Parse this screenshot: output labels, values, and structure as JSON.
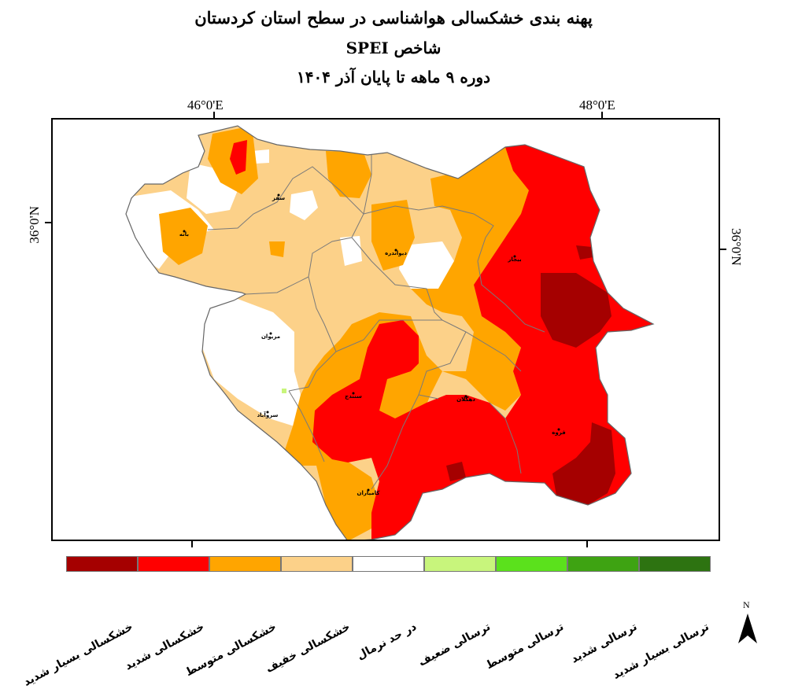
{
  "title": {
    "line1": "پهنه بندی خشکسالی هواشناسی در سطح استان کردستان",
    "line2": "شاخص SPEI",
    "line3": "دوره ۹ ماهه تا پایان آذر ۱۴۰۴"
  },
  "graticule": {
    "lon_left": "46°0'E",
    "lon_right": "48°0'E",
    "lat_left": "36°0'N",
    "lat_right": "36°0'N"
  },
  "cities": [
    {
      "name": "سقز"
    },
    {
      "name": "بانه"
    },
    {
      "name": "دیواندره"
    },
    {
      "name": "بیجار"
    },
    {
      "name": "مریوان"
    },
    {
      "name": "سنندج"
    },
    {
      "name": "دهگلان"
    },
    {
      "name": "سروآباد"
    },
    {
      "name": "قروه"
    },
    {
      "name": "کامیاران"
    }
  ],
  "legend": {
    "items": [
      {
        "label": "خشکسالی بسیار شدید",
        "color": "#a50000"
      },
      {
        "label": "خشکسالی شدید",
        "color": "#ff0000"
      },
      {
        "label": "خشکسالی متوسط",
        "color": "#ffa500"
      },
      {
        "label": "خشکسالی خفیف",
        "color": "#fcd189"
      },
      {
        "label": "در حد نرمال",
        "color": "#ffffff"
      },
      {
        "label": "ترسالی ضعیف",
        "color": "#c8f57c"
      },
      {
        "label": "ترسالی متوسط",
        "color": "#5be11c"
      },
      {
        "label": "ترسالی شدید",
        "color": "#3ea312"
      },
      {
        "label": "ترسالی بسیار شدید",
        "color": "#2d7311"
      }
    ]
  },
  "north_arrow": {
    "label": "N",
    "icon": "north-arrow-icon"
  }
}
